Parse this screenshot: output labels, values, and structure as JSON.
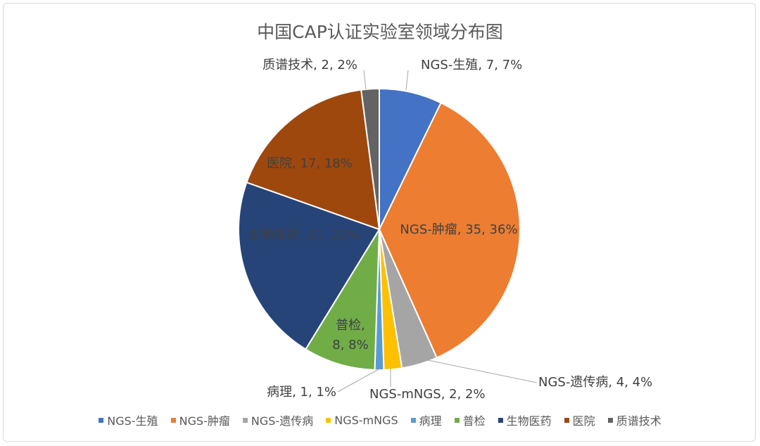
{
  "chart_data": {
    "type": "pie",
    "title": "中国CAP认证实验室领域分布图",
    "legend_position": "bottom",
    "slices": [
      {
        "name": "NGS-生殖",
        "value": 7,
        "percent": "7%",
        "color": "#4472c4"
      },
      {
        "name": "NGS-肿瘤",
        "value": 35,
        "percent": "36%",
        "color": "#ed7d31"
      },
      {
        "name": "NGS-遗传病",
        "value": 4,
        "percent": "4%",
        "color": "#a5a5a5"
      },
      {
        "name": "NGS-mNGS",
        "value": 2,
        "percent": "2%",
        "color": "#ffc000"
      },
      {
        "name": "病理",
        "value": 1,
        "percent": "1%",
        "color": "#5b9bd5"
      },
      {
        "name": "普检",
        "value": 8,
        "percent": "8%",
        "color": "#70ad47"
      },
      {
        "name": "生物医药",
        "value": 21,
        "percent": "22%",
        "color": "#264478"
      },
      {
        "name": "医院",
        "value": 17,
        "percent": "18%",
        "color": "#9e480e"
      },
      {
        "name": "质谱技术",
        "value": 2,
        "percent": "2%",
        "color": "#636363"
      }
    ]
  }
}
